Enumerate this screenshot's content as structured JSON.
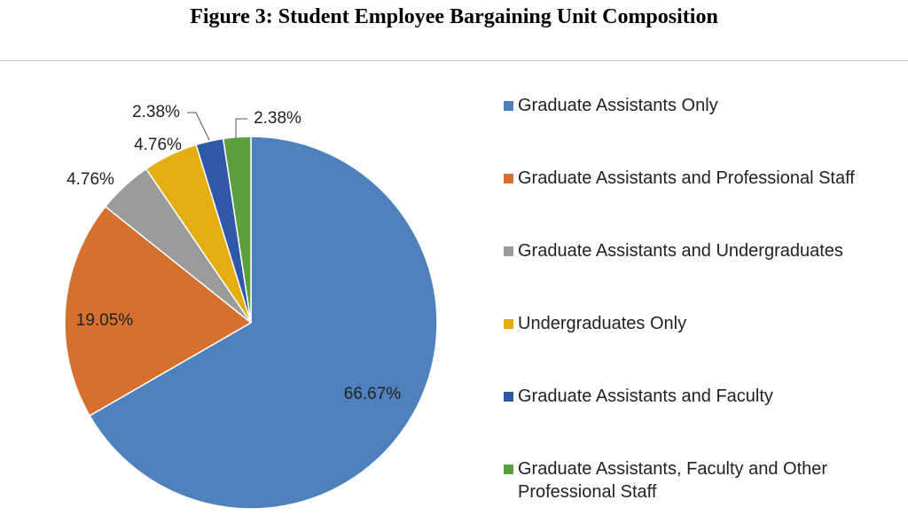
{
  "figure": {
    "title": "Figure 3: Student Employee Bargaining Unit Composition"
  },
  "chart_data": {
    "type": "pie",
    "title": "Figure 3: Student Employee Bargaining Unit Composition",
    "legend_position": "right",
    "slices": [
      {
        "name": "Graduate Assistants Only",
        "value": 66.67,
        "label": "66.67%",
        "color": "#4f81bd"
      },
      {
        "name": "Graduate Assistants and Professional Staff",
        "value": 19.05,
        "label": "19.05%",
        "color": "#d5702f"
      },
      {
        "name": "Graduate Assistants and Undergraduates",
        "value": 4.76,
        "label": "4.76%",
        "color": "#9b9b9b"
      },
      {
        "name": "Undergraduates Only",
        "value": 4.76,
        "label": "4.76%",
        "color": "#e4ad12"
      },
      {
        "name": "Graduate Assistants and Faculty",
        "value": 2.38,
        "label": "2.38%",
        "color": "#2f58a8"
      },
      {
        "name": "Graduate Assistants, Faculty and Other Professional Staff",
        "value": 2.38,
        "label": "2.38%",
        "color": "#5c9f3f"
      }
    ]
  }
}
